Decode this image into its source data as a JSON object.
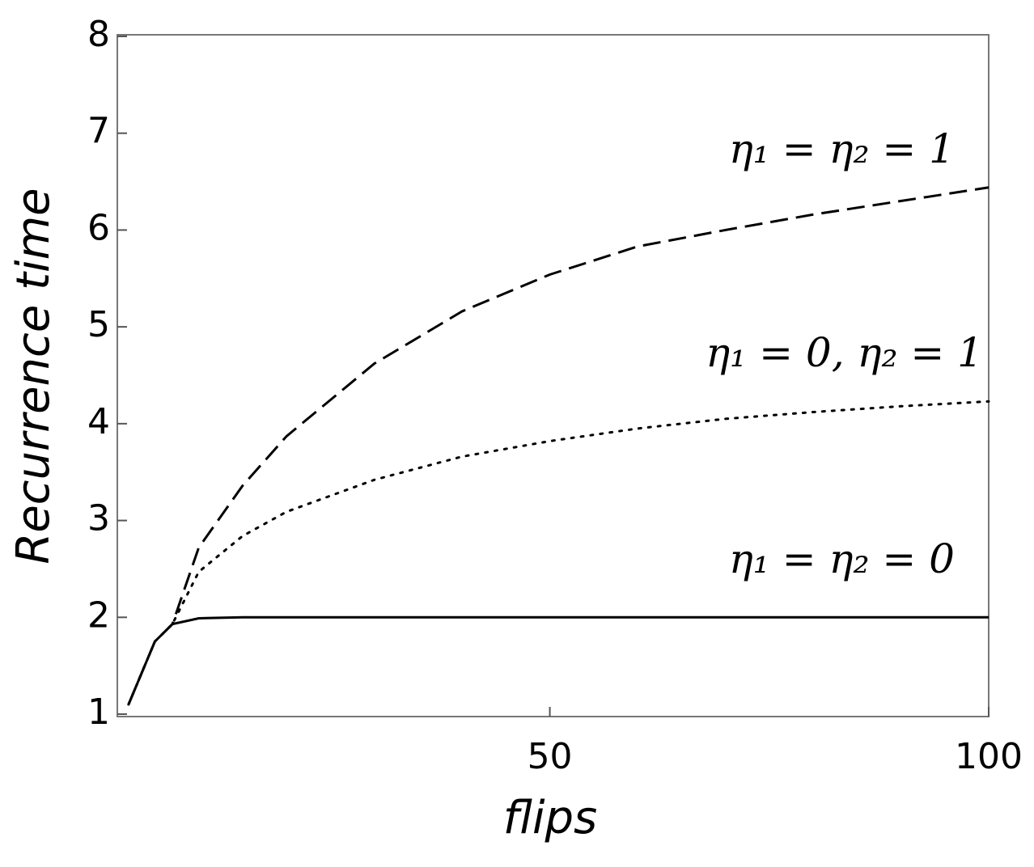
{
  "chart_data": {
    "type": "line",
    "xlabel": "flips",
    "ylabel": "Recurrence time",
    "x": [
      2,
      5,
      7,
      10,
      15,
      20,
      30,
      40,
      50,
      60,
      70,
      80,
      90,
      100
    ],
    "series": [
      {
        "name": "η₁ = η₂ = 1",
        "color": "#000000",
        "style": "dashed",
        "values": [
          1.1,
          1.75,
          1.93,
          2.72,
          3.36,
          3.87,
          4.62,
          5.16,
          5.54,
          5.83,
          6.0,
          6.16,
          6.3,
          6.44
        ]
      },
      {
        "name": "η₁ = 0, η₂ = 1",
        "color": "#000000",
        "style": "dotted",
        "values": [
          1.1,
          1.75,
          1.93,
          2.47,
          2.84,
          3.09,
          3.42,
          3.66,
          3.82,
          3.95,
          4.05,
          4.12,
          4.18,
          4.23
        ]
      },
      {
        "name": "η₁ = η₂ = 0",
        "color": "#000000",
        "style": "solid",
        "values": [
          1.1,
          1.75,
          1.93,
          1.99,
          2,
          2,
          2,
          2,
          2,
          2,
          2,
          2,
          2,
          2
        ]
      }
    ],
    "xlim": [
      1,
      100
    ],
    "xticks": [
      50,
      100
    ],
    "ylim": [
      1,
      8
    ],
    "yticks": [
      1,
      2,
      3,
      4,
      5,
      6,
      7,
      8
    ],
    "grid": false
  }
}
